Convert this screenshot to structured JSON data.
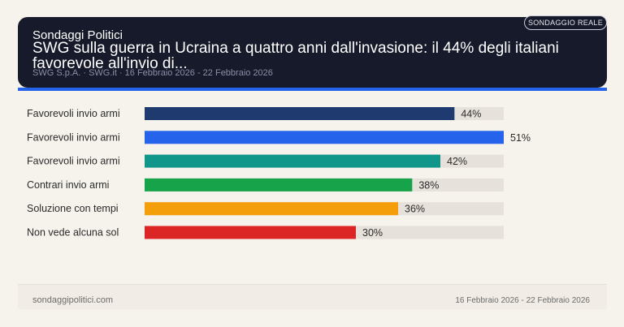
{
  "header": {
    "brand": "Sondaggi Politici",
    "title": "SWG sulla guerra in Ucraina a quattro anni dall'invasione: il 44% degli italiani favorevole all'invio di...",
    "source": "SWG S.p.A. · SWG.it · 16 Febbraio 2026 - 22 Febbraio 2026",
    "badge": "SONDAGGIO REALE"
  },
  "footer": {
    "site": "sondaggipolitici.com",
    "dates": "16 Febbraio 2026 - 22 Febbraio 2026"
  },
  "colors": {
    "track": "#e6e1da",
    "accent": "#2563eb"
  },
  "chart_data": {
    "type": "bar",
    "orientation": "horizontal",
    "categories": [
      "Favorevoli invio armi",
      "Favorevoli invio armi",
      "Favorevoli invio armi",
      "Contrari invio armi",
      "Soluzione con tempi",
      "Non vede alcuna sol"
    ],
    "values": [
      44,
      51,
      42,
      38,
      36,
      30
    ],
    "value_labels": [
      "44%",
      "51%",
      "42%",
      "38%",
      "36%",
      "30%"
    ],
    "colors": [
      "#1e3a6e",
      "#2563eb",
      "#11968a",
      "#16a34a",
      "#f59e0b",
      "#dc2626"
    ],
    "xlim": [
      0,
      51
    ]
  }
}
